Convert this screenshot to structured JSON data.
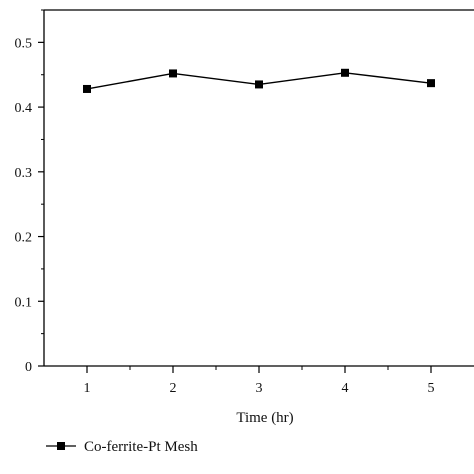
{
  "chart_data": {
    "type": "line",
    "title": "",
    "xlabel": "Time (hr)",
    "ylabel": "",
    "x": [
      1,
      2,
      3,
      4,
      5
    ],
    "x_ticks": [
      "1",
      "2",
      "3",
      "4",
      "5"
    ],
    "y_ticks": [
      "0",
      "0.1",
      "0.2",
      "0.3",
      "0.4",
      "0.5"
    ],
    "xlim": [
      0.5,
      5.5
    ],
    "ylim": [
      0,
      0.55
    ],
    "grid": false,
    "legend_placement": "bottom-left",
    "series": [
      {
        "name": "Co-ferrite-Pt Mesh",
        "values": [
          0.428,
          0.452,
          0.435,
          0.453,
          0.437
        ],
        "color": "#000000",
        "marker": "square"
      }
    ]
  }
}
